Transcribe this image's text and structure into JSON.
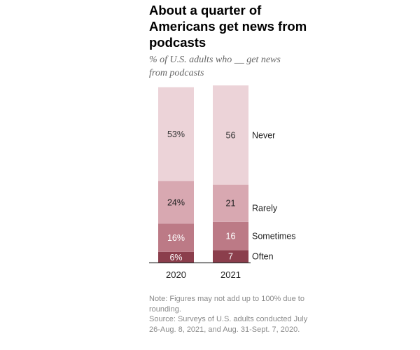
{
  "title": "About a quarter of Americans get news from podcasts",
  "subtitle": "% of U.S. adults who __ get news from podcasts",
  "note": "Note: Figures may not add up to 100% due to rounding.",
  "source": "Source: Surveys of U.S. adults conducted July 26-Aug. 8, 2021, and Aug. 31-Sept. 7, 2020.",
  "colors": {
    "Never": "#ecd3d8",
    "Rarely": "#d8a8b1",
    "Sometimes": "#bc7a86",
    "Often": "#8b3e4c",
    "axis": "#333333"
  },
  "chart_data": {
    "type": "bar",
    "stacked": true,
    "orientation": "vertical",
    "categories": [
      "2020",
      "2021"
    ],
    "series": [
      {
        "name": "Often",
        "values": [
          6,
          7
        ],
        "labels": [
          "6%",
          "7"
        ]
      },
      {
        "name": "Sometimes",
        "values": [
          16,
          16
        ],
        "labels": [
          "16%",
          "16"
        ]
      },
      {
        "name": "Rarely",
        "values": [
          24,
          21
        ],
        "labels": [
          "24%",
          "21"
        ]
      },
      {
        "name": "Never",
        "values": [
          53,
          56
        ],
        "labels": [
          "53%",
          "56"
        ]
      }
    ],
    "legend_placement": "right of last bar, inline labels",
    "grid": false
  }
}
